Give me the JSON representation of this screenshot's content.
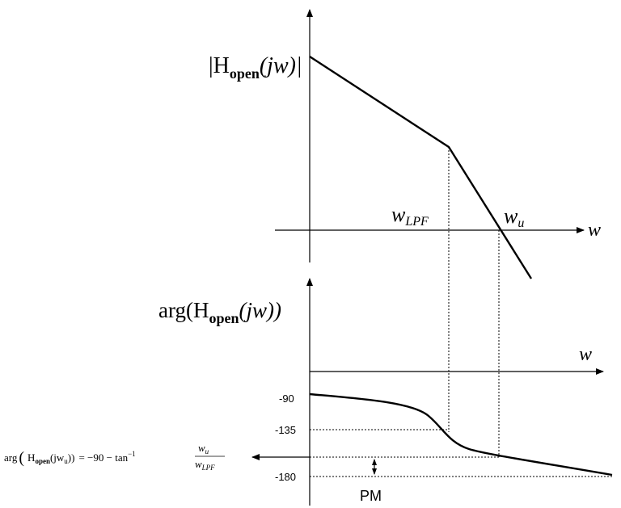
{
  "magnitude_plot": {
    "y_label": {
      "base": "|H",
      "sub": "open",
      "tail": "(jw)|"
    },
    "x_label": "w",
    "break_label": {
      "base": "w",
      "sub": "LPF"
    },
    "crossover_label": {
      "base": "w",
      "sub": "u"
    }
  },
  "phase_plot": {
    "y_label": {
      "base": "arg(H",
      "sub": "open",
      "tail": "(jw))"
    },
    "x_label": "w",
    "ticks": [
      "-90",
      "-135",
      "-180"
    ],
    "margin_label": "PM",
    "formula": {
      "lead": "arg",
      "open_paren": "(",
      "h": "H",
      "h_sub": "open",
      "arg": "(jw",
      "arg_sub": "u",
      "close": "))",
      "rhs": "= −90 − tan",
      "sup": "−1",
      "num": "w",
      "num_sub": "u",
      "den": "w",
      "den_sub": "LPF"
    }
  }
}
